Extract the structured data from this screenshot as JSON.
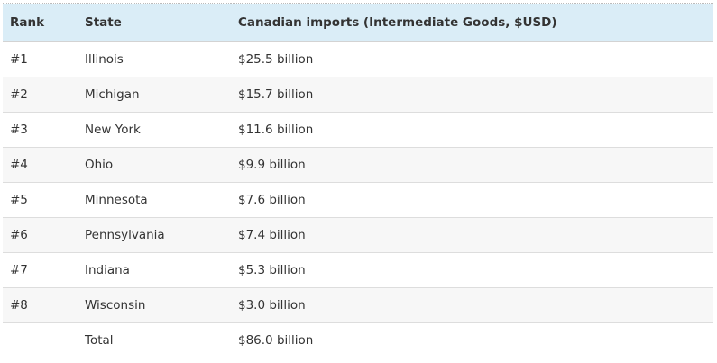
{
  "headers": [
    "Rank",
    "State",
    "Canadian imports (Intermediate Goods, $USD)"
  ],
  "rows": [
    {
      "rank": "#1",
      "state": "Illinois",
      "value": "$25.5 billion"
    },
    {
      "rank": "#2",
      "state": "Michigan",
      "value": "$15.7 billion"
    },
    {
      "rank": "#3",
      "state": "New York",
      "value": "$11.6 billion"
    },
    {
      "rank": "#4",
      "state": "Ohio",
      "value": "$9.9 billion"
    },
    {
      "rank": "#5",
      "state": "Minnesota",
      "value": "$7.6 billion"
    },
    {
      "rank": "#6",
      "state": "Pennsylvania",
      "value": "$7.4 billion"
    },
    {
      "rank": "#7",
      "state": "Indiana",
      "value": "$5.3 billion"
    },
    {
      "rank": "#8",
      "state": "Wisconsin",
      "value": "$3.0 billion"
    }
  ],
  "total": {
    "rank": "",
    "state": "Total",
    "value": "$86.0 billion"
  }
}
